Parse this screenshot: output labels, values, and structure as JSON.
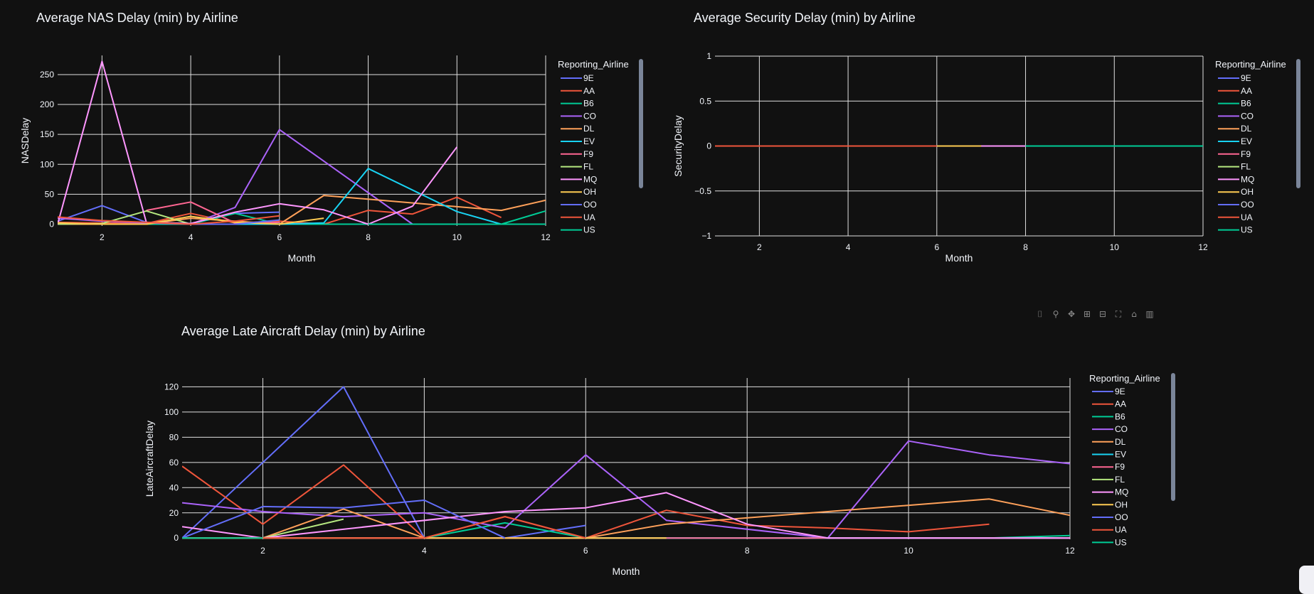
{
  "colors": {
    "background": "#111111",
    "grid": "#e0e0e0",
    "text": "#f2f5fa",
    "zeroline": "#ffffff",
    "palette": {
      "9E": "#636efa",
      "AA": "#EF553B",
      "B6": "#00cc96",
      "CO": "#ab63fa",
      "DL": "#FFA15A",
      "EV": "#19d3f3",
      "F9": "#FF6692",
      "FL": "#B6E880",
      "MQ": "#FF97FF",
      "OH": "#FECB52",
      "OO": "#636efa",
      "UA": "#EF553B",
      "US": "#00cc96"
    }
  },
  "modebar": {
    "icons": [
      "camera-icon",
      "zoom-icon",
      "pan-icon",
      "zoom-in-icon",
      "zoom-out-icon",
      "autoscale-icon",
      "reset-axes-icon",
      "plotly-logo-icon"
    ],
    "glyphs": [
      "⌷",
      "⚲",
      "✥",
      "⊞",
      "⊟",
      "⛶",
      "⌂",
      "▥"
    ]
  },
  "chart_data": [
    {
      "type": "line",
      "title": "Average NAS Delay (min) by Airline",
      "xlabel": "Month",
      "ylabel": "NASDelay",
      "xlim": [
        1,
        12
      ],
      "ylim": [
        -3,
        282
      ],
      "xticks": [
        2,
        4,
        6,
        8,
        10,
        12
      ],
      "yticks": [
        0,
        50,
        100,
        150,
        200,
        250
      ],
      "grid": true,
      "legend_title": "Reporting_Airline",
      "legend_position": "right",
      "series": [
        {
          "name": "9E",
          "x": [
            1,
            2,
            3,
            4,
            5,
            6
          ],
          "y": [
            5,
            31,
            3,
            1,
            18,
            20
          ]
        },
        {
          "name": "AA",
          "x": [
            1,
            2,
            3,
            4,
            5,
            6,
            7,
            8,
            9,
            10,
            11
          ],
          "y": [
            3,
            2,
            1,
            18,
            2,
            5,
            0,
            23,
            17,
            45,
            11
          ]
        },
        {
          "name": "B6",
          "x": [
            1,
            2,
            3,
            4,
            5,
            6,
            7,
            8,
            9,
            10,
            11,
            12
          ],
          "y": [
            0,
            0,
            0,
            0,
            18,
            0,
            0,
            0,
            0,
            0,
            0,
            22
          ]
        },
        {
          "name": "CO",
          "x": [
            1,
            2,
            3,
            4,
            5,
            6,
            9,
            10,
            11,
            12
          ],
          "y": [
            10,
            5,
            2,
            0,
            28,
            158,
            0,
            0,
            0,
            0
          ]
        },
        {
          "name": "DL",
          "x": [
            1,
            2,
            3,
            4,
            5,
            6,
            7,
            11,
            12
          ],
          "y": [
            0,
            0,
            0,
            10,
            5,
            0,
            48,
            23,
            40
          ]
        },
        {
          "name": "EV",
          "x": [
            5,
            6,
            7,
            8,
            10,
            11
          ],
          "y": [
            0,
            0,
            2,
            93,
            21,
            0
          ]
        },
        {
          "name": "F9",
          "x": [
            3,
            4,
            5,
            6
          ],
          "y": [
            23,
            37,
            2,
            3
          ]
        },
        {
          "name": "FL",
          "x": [
            1,
            2,
            3,
            4
          ],
          "y": [
            0,
            1,
            22,
            0
          ]
        },
        {
          "name": "MQ",
          "x": [
            1,
            2,
            3,
            4,
            5,
            6,
            7,
            8,
            9,
            10
          ],
          "y": [
            0,
            272,
            3,
            1,
            20,
            34,
            24,
            0,
            30,
            129
          ]
        },
        {
          "name": "OH",
          "x": [
            1,
            2,
            3,
            4,
            5,
            6,
            7
          ],
          "y": [
            2,
            0,
            0,
            13,
            3,
            0,
            10
          ]
        },
        {
          "name": "OO",
          "x": [
            4,
            5,
            6
          ],
          "y": [
            0,
            0,
            7
          ]
        },
        {
          "name": "UA",
          "x": [
            1,
            2,
            3,
            4,
            5,
            6
          ],
          "y": [
            12,
            6,
            3,
            0,
            5,
            14
          ]
        },
        {
          "name": "US",
          "x": [
            8,
            9,
            10,
            11,
            12
          ],
          "y": [
            0,
            0,
            0,
            0,
            0
          ]
        }
      ]
    },
    {
      "type": "line",
      "title": "Average Security Delay (min) by Airline",
      "xlabel": "Month",
      "ylabel": "SecurityDelay",
      "xlim": [
        1,
        12
      ],
      "ylim": [
        -1,
        1
      ],
      "xticks": [
        2,
        4,
        6,
        8,
        10,
        12
      ],
      "yticks": [
        1,
        0.5,
        0,
        -0.5,
        -1
      ],
      "ytick_labels": [
        "1",
        "0.5",
        "0",
        "−0.5",
        "−1"
      ],
      "grid": true,
      "legend_title": "Reporting_Airline",
      "legend_position": "right",
      "series": [
        {
          "name": "9E",
          "x": [
            1,
            12
          ],
          "y": [
            0,
            0
          ]
        },
        {
          "name": "AA",
          "x": [
            3,
            4,
            7,
            8
          ],
          "y": [
            0,
            0,
            0,
            0
          ]
        },
        {
          "name": "B6",
          "x": [
            1,
            12
          ],
          "y": [
            0,
            0
          ]
        },
        {
          "name": "CO",
          "x": [
            1,
            12
          ],
          "y": [
            0,
            0
          ]
        },
        {
          "name": "DL",
          "x": [
            7,
            8
          ],
          "y": [
            0,
            0
          ]
        },
        {
          "name": "EV",
          "x": [
            5,
            12
          ],
          "y": [
            0,
            0
          ]
        },
        {
          "name": "F9",
          "x": [
            3,
            4
          ],
          "y": [
            0,
            0
          ]
        },
        {
          "name": "FL",
          "x": [
            1,
            4
          ],
          "y": [
            0,
            0
          ]
        },
        {
          "name": "MQ",
          "x": [
            1,
            12
          ],
          "y": [
            0,
            0
          ]
        },
        {
          "name": "OH",
          "x": [
            1,
            7
          ],
          "y": [
            0,
            0
          ]
        },
        {
          "name": "OO",
          "x": [
            4,
            6
          ],
          "y": [
            0,
            0
          ]
        },
        {
          "name": "UA",
          "x": [
            1,
            6
          ],
          "y": [
            0,
            0
          ]
        },
        {
          "name": "US",
          "x": [
            8,
            12
          ],
          "y": [
            0,
            0
          ]
        }
      ]
    },
    {
      "type": "line",
      "title": "Average Late Aircraft Delay (min) by Airline",
      "xlabel": "Month",
      "ylabel": "LateAircraftDelay",
      "xlim": [
        1,
        12
      ],
      "ylim": [
        -1,
        127
      ],
      "xticks": [
        2,
        4,
        6,
        8,
        10,
        12
      ],
      "yticks": [
        0,
        20,
        40,
        60,
        80,
        100,
        120
      ],
      "grid": true,
      "legend_title": "Reporting_Airline",
      "legend_position": "right",
      "series": [
        {
          "name": "9E",
          "x": [
            1,
            2,
            3,
            4,
            5,
            6
          ],
          "y": [
            0,
            60,
            120,
            0,
            0,
            10
          ]
        },
        {
          "name": "AA",
          "x": [
            1,
            2,
            3,
            4,
            5,
            6,
            7,
            8,
            9,
            10,
            11
          ],
          "y": [
            57,
            11,
            58,
            0,
            17,
            0,
            22,
            10,
            8,
            5,
            11
          ]
        },
        {
          "name": "B6",
          "x": [
            4,
            5,
            6,
            7,
            8,
            9,
            10,
            11,
            12
          ],
          "y": [
            0,
            12,
            0,
            0,
            0,
            0,
            0,
            0,
            2
          ]
        },
        {
          "name": "CO",
          "x": [
            1,
            2,
            3,
            4,
            5,
            6,
            7,
            9,
            10,
            11,
            12
          ],
          "y": [
            28,
            21,
            17,
            20,
            8,
            66,
            14,
            0,
            77,
            66,
            59
          ]
        },
        {
          "name": "DL",
          "x": [
            1,
            2,
            3,
            4,
            5,
            6,
            7,
            11,
            12
          ],
          "y": [
            0,
            0,
            23,
            0,
            0,
            0,
            11,
            31,
            18
          ]
        },
        {
          "name": "EV",
          "x": [
            7,
            8,
            9,
            10,
            11,
            12
          ],
          "y": [
            0,
            0,
            0,
            0,
            0,
            0
          ]
        },
        {
          "name": "F9",
          "x": [
            3,
            4,
            5,
            6,
            7,
            8,
            9,
            10,
            11,
            12
          ],
          "y": [
            0,
            0,
            0,
            0,
            0,
            0,
            0,
            0,
            0,
            0
          ]
        },
        {
          "name": "FL",
          "x": [
            1,
            2,
            3
          ],
          "y": [
            0,
            0,
            15
          ]
        },
        {
          "name": "MQ",
          "x": [
            1,
            2,
            5,
            6,
            7,
            8,
            9,
            10,
            11,
            12
          ],
          "y": [
            9,
            0,
            21,
            24,
            36,
            11,
            0,
            0,
            0,
            0
          ]
        },
        {
          "name": "OH",
          "x": [
            1,
            2,
            3,
            4,
            5,
            6,
            7
          ],
          "y": [
            0,
            0,
            0,
            0,
            0,
            0,
            0
          ]
        },
        {
          "name": "OO",
          "x": [
            1,
            2,
            3,
            4,
            5
          ],
          "y": [
            0,
            25,
            24,
            30,
            0
          ]
        },
        {
          "name": "UA",
          "x": [
            1,
            2,
            3,
            4,
            5,
            6
          ],
          "y": [
            0,
            0,
            0,
            0,
            17,
            0
          ]
        },
        {
          "name": "US",
          "x": [
            1,
            2
          ],
          "y": [
            0,
            0
          ]
        }
      ]
    }
  ]
}
